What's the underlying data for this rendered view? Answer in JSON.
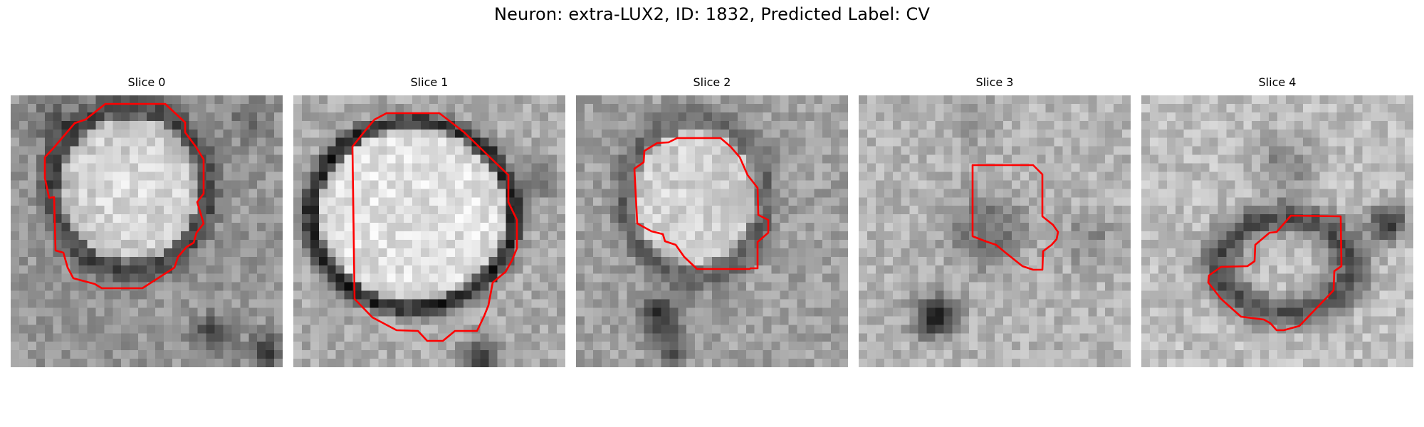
{
  "figure": {
    "title": "Neuron: extra-LUX2, ID: 1832, Predicted Label: CV"
  },
  "colors": {
    "contour": "#ff0000",
    "colormap": "gray"
  },
  "slices": [
    {
      "title": "Slice 0",
      "index": 0
    },
    {
      "title": "Slice 1",
      "index": 1
    },
    {
      "title": "Slice 2",
      "index": 2
    },
    {
      "title": "Slice 3",
      "index": 3
    },
    {
      "title": "Slice 4",
      "index": 4
    }
  ]
}
